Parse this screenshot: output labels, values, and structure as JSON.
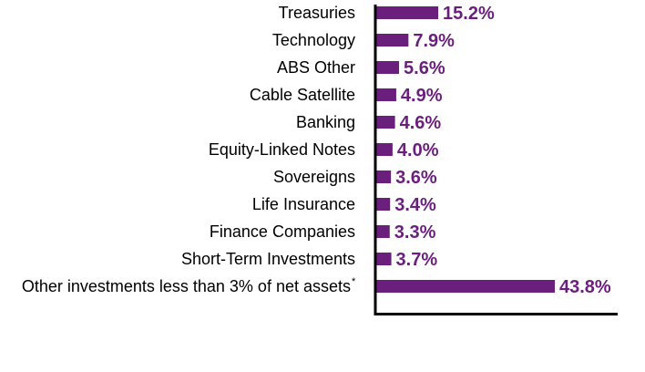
{
  "colors": {
    "bar": "#6b1f7c",
    "value_text": "#6b1f7c",
    "axis": "#000000",
    "label_text": "#000000"
  },
  "chart_data": {
    "type": "bar",
    "orientation": "horizontal",
    "title": "",
    "xlabel": "",
    "ylabel": "",
    "grid": false,
    "legend": "none",
    "xlim": [
      0,
      50
    ],
    "categories": [
      "Treasuries",
      "Technology",
      "ABS Other",
      "Cable Satellite",
      "Banking",
      "Equity-Linked Notes",
      "Sovereigns",
      "Life Insurance",
      "Finance Companies",
      "Short-Term Investments",
      "Other investments less than 3% of net assets"
    ],
    "category_marks": [
      "",
      "",
      "",
      "",
      "",
      "",
      "",
      "",
      "",
      "",
      "*"
    ],
    "values": [
      15.2,
      7.9,
      5.6,
      4.9,
      4.6,
      4.0,
      3.6,
      3.4,
      3.3,
      3.7,
      43.8
    ],
    "value_labels": [
      "15.2%",
      "7.9%",
      "5.6%",
      "4.9%",
      "4.6%",
      "4.0%",
      "3.6%",
      "3.4%",
      "3.3%",
      "3.7%",
      "43.8%"
    ]
  }
}
